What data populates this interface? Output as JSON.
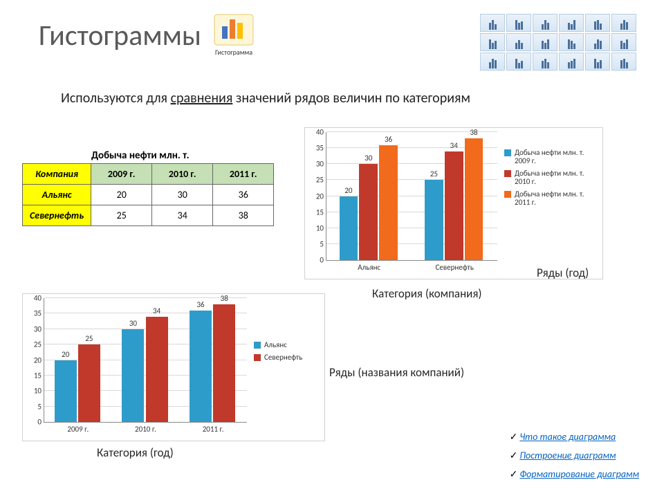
{
  "title": "Гистограммы",
  "icon_label": "Гистограмма",
  "subtitle_prefix": "Используются для ",
  "subtitle_underlined": "сравнения",
  "subtitle_suffix": " значений рядов величин по категориям",
  "table": {
    "title": "Добыча нефти млн. т.",
    "headers": [
      "Компания",
      "2009 г.",
      "2010 г.",
      "2011 г."
    ],
    "rows": [
      [
        "Альянс",
        "20",
        "30",
        "36"
      ],
      [
        "Севернефть",
        "25",
        "34",
        "38"
      ]
    ]
  },
  "chart_top": {
    "type": "bar",
    "ylim": [
      0,
      40
    ],
    "ytick_step": 5,
    "categories": [
      "Альянс",
      "Севернефть"
    ],
    "series": [
      {
        "name": "Добыча нефти млн. т. 2009 г.",
        "color": "#2e9cca",
        "values": [
          20,
          25
        ]
      },
      {
        "name": "Добыча нефти млн. т. 2010 г.",
        "color": "#c0392b",
        "values": [
          30,
          34
        ]
      },
      {
        "name": "Добыча нефти млн. т. 2011 г.",
        "color": "#f26a1b",
        "values": [
          36,
          38
        ]
      }
    ],
    "caption_x": "Категория (компания)",
    "caption_legend": "Ряды (год)"
  },
  "chart_bottom": {
    "type": "bar",
    "ylim": [
      0,
      40
    ],
    "ytick_step": 5,
    "categories": [
      "2009 г.",
      "2010 г.",
      "2011 г."
    ],
    "series": [
      {
        "name": "Альянс",
        "color": "#2e9cca",
        "values": [
          20,
          30,
          36
        ]
      },
      {
        "name": "Севернефть",
        "color": "#c0392b",
        "values": [
          25,
          34,
          38
        ]
      }
    ],
    "caption_x": "Категория (год)",
    "caption_legend": "Ряды (названия компаний)"
  },
  "links": [
    "Что такое диаграмма",
    "Построение диаграмм",
    "Форматирование диаграмм"
  ],
  "colors": {
    "title": "#595959",
    "link": "#0563c1",
    "header_bg": "#c5e0b4",
    "company_bg": "#ffff00",
    "grid": "#d9d9d9"
  }
}
